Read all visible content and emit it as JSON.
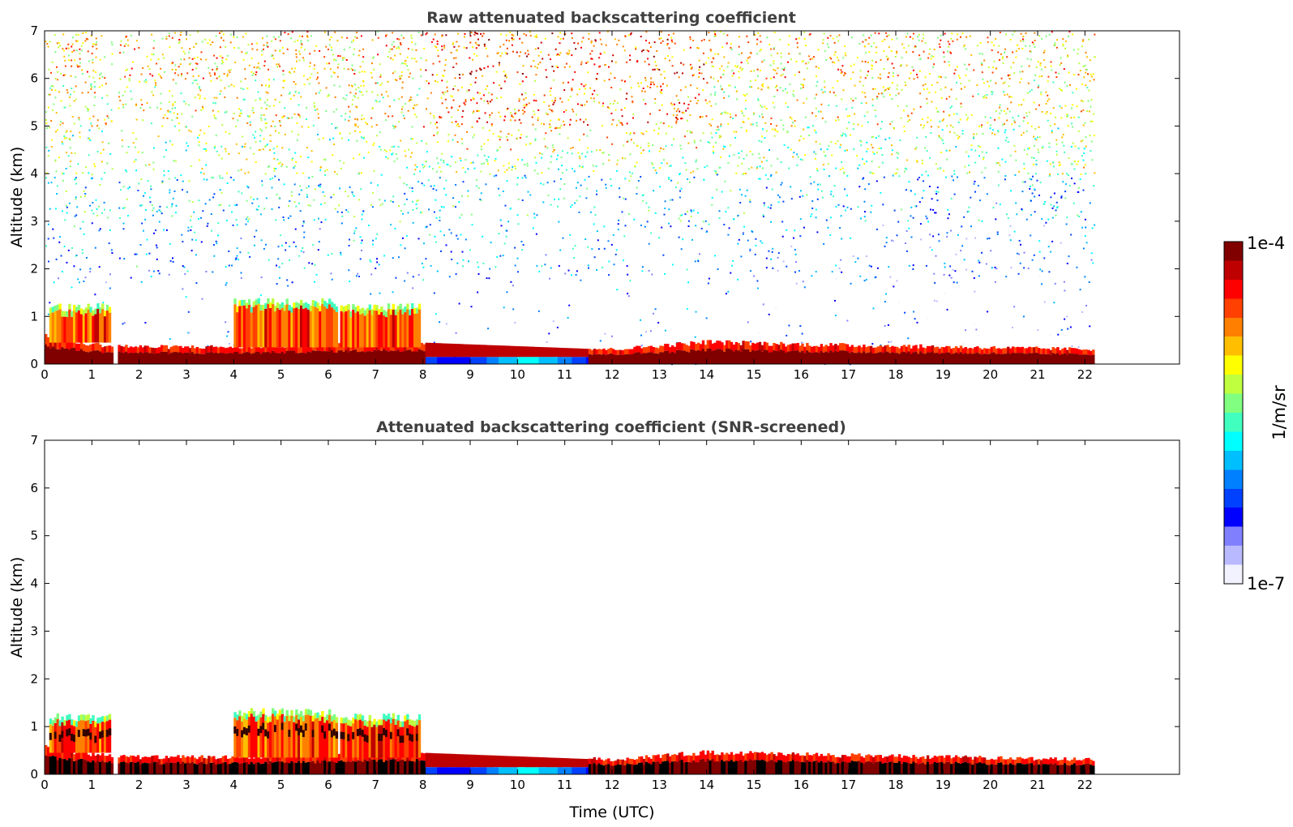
{
  "chart_data": [
    {
      "type": "heatmap",
      "title": "Raw attenuated backscattering coefficient",
      "xlabel": "",
      "ylabel": "Altitude (km)",
      "xlim": [
        0,
        24
      ],
      "ylim": [
        0,
        7
      ],
      "xticks": [
        0,
        1,
        2,
        3,
        4,
        5,
        6,
        7,
        8,
        9,
        10,
        11,
        12,
        13,
        14,
        15,
        16,
        17,
        18,
        19,
        20,
        21,
        22
      ],
      "yticks": [
        0,
        1,
        2,
        3,
        4,
        5,
        6,
        7
      ],
      "data_end_time": 22.2,
      "gap": [
        1.42,
        1.55
      ],
      "noise_rows": [
        {
          "alt": 0.5,
          "density": 0.35,
          "level": 0.22
        },
        {
          "alt": 1.5,
          "density": 0.25,
          "level": 0.28
        },
        {
          "alt": 2.5,
          "density": 0.3,
          "level": 0.33
        },
        {
          "alt": 3.5,
          "density": 0.45,
          "level": 0.42
        },
        {
          "alt": 4.5,
          "density": 0.6,
          "level": 0.55
        },
        {
          "alt": 5.5,
          "density": 0.75,
          "level": 0.62
        },
        {
          "alt": 6.5,
          "density": 0.85,
          "level": 0.68
        }
      ],
      "boundary_layer": [
        {
          "t": 0,
          "top": 0.55
        },
        {
          "t": 1,
          "top": 0.4
        },
        {
          "t": 2,
          "top": 0.35
        },
        {
          "t": 4,
          "top": 0.35
        },
        {
          "t": 8,
          "top": 0.45
        },
        {
          "t": 12,
          "top": 0.3
        },
        {
          "t": 14,
          "top": 0.45
        },
        {
          "t": 16,
          "top": 0.4
        },
        {
          "t": 22.2,
          "top": 0.3
        }
      ],
      "cloud_layers": [
        {
          "t0": 0.1,
          "t1": 1.4,
          "bottom": 0.45,
          "top": 1.2
        },
        {
          "t0": 4.0,
          "t1": 6.15,
          "bottom": 0.35,
          "top": 1.3
        },
        {
          "t0": 6.25,
          "t1": 7.9,
          "bottom": 0.35,
          "top": 1.2
        }
      ],
      "clear_air_region": {
        "t0": 8.0,
        "t1": 11.5,
        "alt_top": 0.15,
        "level": 0.3
      }
    },
    {
      "type": "heatmap",
      "title": "Attenuated backscattering coefficient (SNR-screened)",
      "xlabel": "Time (UTC)",
      "ylabel": "Altitude (km)",
      "xlim": [
        0,
        24
      ],
      "ylim": [
        0,
        7
      ],
      "xticks": [
        0,
        1,
        2,
        3,
        4,
        5,
        6,
        7,
        8,
        9,
        10,
        11,
        12,
        13,
        14,
        15,
        16,
        17,
        18,
        19,
        20,
        21,
        22
      ],
      "yticks": [
        0,
        1,
        2,
        3,
        4,
        5,
        6,
        7
      ],
      "data_end_time": 22.2,
      "gap": [
        1.42,
        1.55
      ],
      "boundary_layer": [
        {
          "t": 0,
          "top": 0.55
        },
        {
          "t": 1,
          "top": 0.4
        },
        {
          "t": 2,
          "top": 0.35
        },
        {
          "t": 4,
          "top": 0.35
        },
        {
          "t": 8,
          "top": 0.45
        },
        {
          "t": 12,
          "top": 0.3
        },
        {
          "t": 14,
          "top": 0.45
        },
        {
          "t": 16,
          "top": 0.4
        },
        {
          "t": 22.2,
          "top": 0.3
        }
      ],
      "cloud_layers": [
        {
          "t0": 0.1,
          "t1": 1.4,
          "bottom": 0.45,
          "top": 1.2
        },
        {
          "t0": 4.0,
          "t1": 6.15,
          "bottom": 0.35,
          "top": 1.3
        },
        {
          "t0": 6.25,
          "t1": 7.9,
          "bottom": 0.35,
          "top": 1.2
        }
      ],
      "clear_air_region": {
        "t0": 8.0,
        "t1": 11.5,
        "alt_top": 0.15,
        "level": 0.3
      }
    }
  ],
  "colorbar": {
    "max_label": "1e-4",
    "min_label": "1e-7",
    "unit_label": "1/m/sr",
    "colors": [
      "#f2f2ff",
      "#b9b9ff",
      "#8080ff",
      "#0000ff",
      "#0040ff",
      "#0080ff",
      "#00bfff",
      "#00ffff",
      "#40ffbf",
      "#80ff80",
      "#bfff40",
      "#ffff00",
      "#ffbf00",
      "#ff8000",
      "#ff4000",
      "#ff0000",
      "#bf0000",
      "#800000"
    ]
  }
}
